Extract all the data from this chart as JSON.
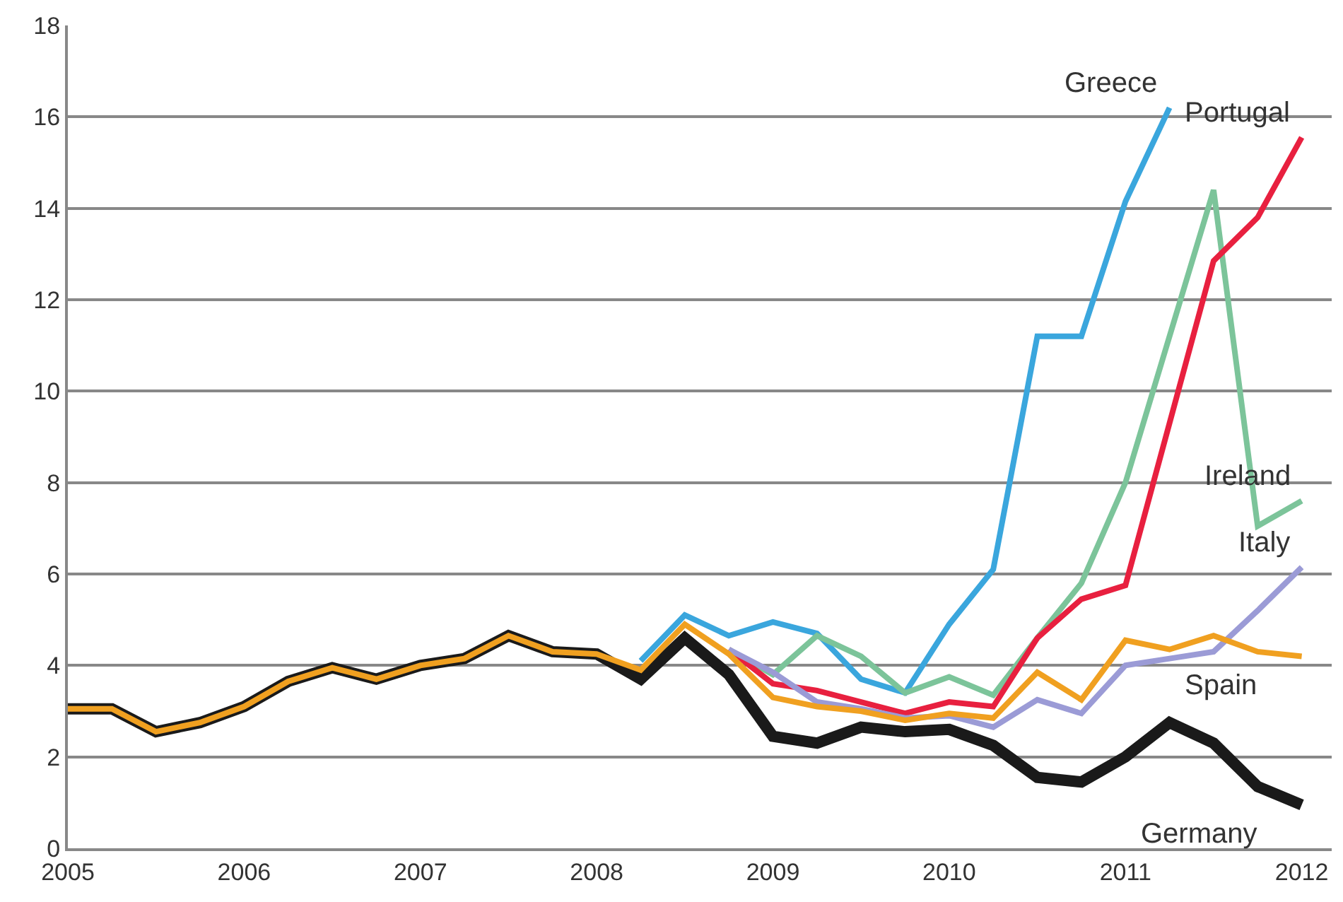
{
  "chart_data": {
    "type": "line",
    "x": [
      2005,
      2005.25,
      2005.5,
      2005.75,
      2006,
      2006.25,
      2006.5,
      2006.75,
      2007,
      2007.25,
      2007.5,
      2007.75,
      2008,
      2008.25,
      2008.5,
      2008.75,
      2009,
      2009.25,
      2009.5,
      2009.75,
      2010,
      2010.25,
      2010.5,
      2010.75,
      2011,
      2011.25,
      2011.5,
      2011.75,
      2012
    ],
    "series": [
      {
        "name": "Greece",
        "color": "#3aa6dd",
        "values": [
          null,
          null,
          null,
          null,
          null,
          null,
          null,
          null,
          null,
          null,
          null,
          null,
          null,
          4.1,
          5.1,
          4.65,
          4.95,
          4.7,
          3.7,
          3.4,
          4.9,
          6.1,
          11.2,
          11.2,
          14.15,
          16.2,
          null,
          null,
          null
        ]
      },
      {
        "name": "Ireland",
        "color": "#7cc49a",
        "values": [
          null,
          null,
          null,
          null,
          null,
          null,
          null,
          null,
          null,
          null,
          null,
          null,
          null,
          null,
          null,
          4.35,
          3.8,
          4.65,
          4.2,
          3.4,
          3.75,
          3.35,
          4.6,
          5.8,
          8.0,
          11.2,
          14.4,
          7.05,
          7.6
        ]
      },
      {
        "name": "Portugal",
        "color": "#e8203f",
        "values": [
          null,
          null,
          null,
          null,
          null,
          null,
          null,
          null,
          null,
          null,
          null,
          null,
          null,
          null,
          null,
          4.35,
          3.6,
          3.45,
          3.2,
          2.95,
          3.2,
          3.1,
          4.6,
          5.45,
          5.75,
          9.3,
          12.85,
          13.8,
          15.55
        ]
      },
      {
        "name": "Italy",
        "color": "#9b9bd6",
        "values": [
          null,
          null,
          null,
          null,
          null,
          null,
          null,
          null,
          null,
          null,
          null,
          null,
          null,
          null,
          null,
          4.35,
          3.85,
          3.2,
          3.05,
          2.85,
          2.9,
          2.65,
          3.25,
          2.95,
          4.0,
          4.15,
          4.3,
          5.2,
          6.15
        ]
      },
      {
        "name": "Germany",
        "color": "#1a1a1a",
        "values": [
          3.05,
          3.05,
          2.55,
          2.75,
          3.1,
          3.65,
          3.95,
          3.7,
          4.0,
          4.15,
          4.65,
          4.3,
          4.25,
          3.7,
          4.6,
          3.8,
          2.45,
          2.3,
          2.65,
          2.55,
          2.6,
          2.25,
          1.55,
          1.45,
          2.0,
          2.75,
          2.3,
          1.35,
          0.95
        ]
      },
      {
        "name": "Spain",
        "color": "#f0a020",
        "values": [
          3.05,
          3.05,
          2.55,
          2.75,
          3.1,
          3.65,
          3.95,
          3.7,
          4.0,
          4.15,
          4.65,
          4.3,
          4.25,
          3.9,
          4.9,
          4.25,
          3.3,
          3.1,
          3.0,
          2.8,
          2.95,
          2.85,
          3.85,
          3.25,
          4.55,
          4.35,
          4.65,
          4.3,
          4.2
        ]
      }
    ],
    "xlim": [
      2005,
      2012.17
    ],
    "xticks": [
      2005,
      2006,
      2007,
      2008,
      2009,
      2010,
      2011,
      2012
    ],
    "ylim": [
      0,
      18
    ],
    "yticks": [
      0,
      2,
      4,
      6,
      8,
      10,
      12,
      14,
      16,
      18
    ],
    "grid": "y",
    "legend": false,
    "marker": "none",
    "line_style": "solid"
  }
}
